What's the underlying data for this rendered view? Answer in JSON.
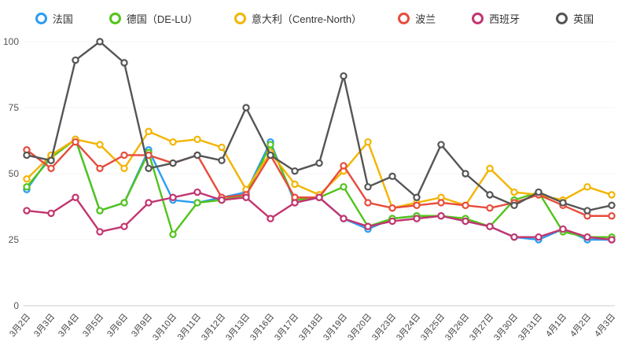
{
  "chart_data": {
    "type": "line",
    "title": "",
    "xlabel": "",
    "ylabel": "",
    "ylim": [
      0,
      100
    ],
    "yticks": [
      0,
      25,
      50,
      75,
      100
    ],
    "grid": false,
    "legend_position": "top",
    "x": [
      "3月2日",
      "3月3日",
      "3月4日",
      "3月5日",
      "3月6日",
      "3月9日",
      "3月10日",
      "3月11日",
      "3月12日",
      "3月13日",
      "3月16日",
      "3月17日",
      "3月18日",
      "3月19日",
      "3月20日",
      "3月23日",
      "3月24日",
      "3月25日",
      "3月26日",
      "3月27日",
      "3月30日",
      "3月31日",
      "4月1日",
      "4月2日",
      "4月3日"
    ],
    "series": [
      {
        "name": "法国",
        "color": "#2b9cf2",
        "values": [
          44,
          57,
          63,
          36,
          39,
          59,
          40,
          39,
          41,
          43,
          62,
          39,
          41,
          33,
          29,
          33,
          34,
          34,
          32,
          30,
          26,
          25,
          29,
          25,
          25
        ]
      },
      {
        "name": "德国（DE-LU）",
        "color": "#52c41a",
        "values": [
          45,
          56,
          63,
          36,
          39,
          58,
          27,
          39,
          40,
          42,
          61,
          40,
          41,
          45,
          30,
          33,
          34,
          34,
          33,
          30,
          40,
          43,
          28,
          26,
          26
        ]
      },
      {
        "name": "意大利（Centre-North）",
        "color": "#f4b400",
        "values": [
          48,
          57,
          63,
          61,
          52,
          66,
          62,
          63,
          60,
          44,
          58,
          46,
          42,
          51,
          62,
          37,
          39,
          41,
          38,
          52,
          43,
          42,
          40,
          45,
          42
        ]
      },
      {
        "name": "波兰",
        "color": "#e74c3c",
        "values": [
          59,
          52,
          62,
          52,
          57,
          57,
          54,
          57,
          41,
          42,
          57,
          41,
          41,
          53,
          39,
          37,
          38,
          39,
          38,
          37,
          39,
          42,
          38,
          34,
          34
        ]
      },
      {
        "name": "西班牙",
        "color": "#c2356f",
        "values": [
          36,
          35,
          41,
          28,
          30,
          39,
          41,
          43,
          40,
          41,
          33,
          39,
          41,
          33,
          30,
          32,
          33,
          34,
          32,
          30,
          26,
          26,
          29,
          26,
          25
        ]
      },
      {
        "name": "英国",
        "color": "#555555",
        "values": [
          57,
          55,
          93,
          100,
          92,
          52,
          54,
          57,
          55,
          75,
          57,
          51,
          54,
          87,
          45,
          49,
          41,
          61,
          50,
          42,
          38,
          43,
          39,
          36,
          38
        ]
      }
    ]
  }
}
